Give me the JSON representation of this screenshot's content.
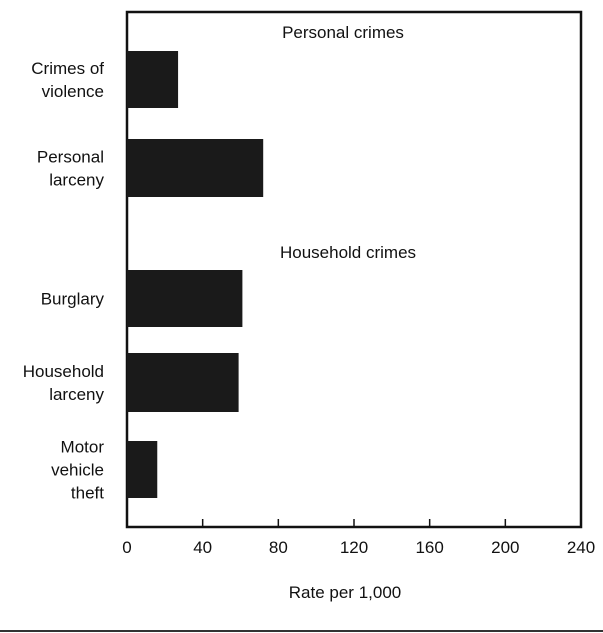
{
  "chart_data": {
    "type": "bar",
    "orientation": "horizontal",
    "title": "",
    "xlabel": "Rate per 1,000",
    "ylabel": "",
    "xlim": [
      0,
      240
    ],
    "xticks": [
      0,
      40,
      80,
      120,
      160,
      200,
      240
    ],
    "grid": false,
    "legend": "none",
    "colors": {
      "bar": "#1a1a1a",
      "axis": "#111111",
      "text": "#111111"
    },
    "groups": [
      {
        "title": "Personal crimes",
        "bars": [
          {
            "label_lines": [
              "Crimes of",
              "violence"
            ],
            "value": 27
          },
          {
            "label_lines": [
              "Personal",
              "larceny"
            ],
            "value": 72
          }
        ]
      },
      {
        "title": "Household crimes",
        "bars": [
          {
            "label_lines": [
              "Burglary"
            ],
            "value": 61
          },
          {
            "label_lines": [
              "Household",
              "larceny"
            ],
            "value": 59
          },
          {
            "label_lines": [
              "Motor",
              "vehicle",
              "theft"
            ],
            "value": 16
          }
        ]
      }
    ]
  }
}
